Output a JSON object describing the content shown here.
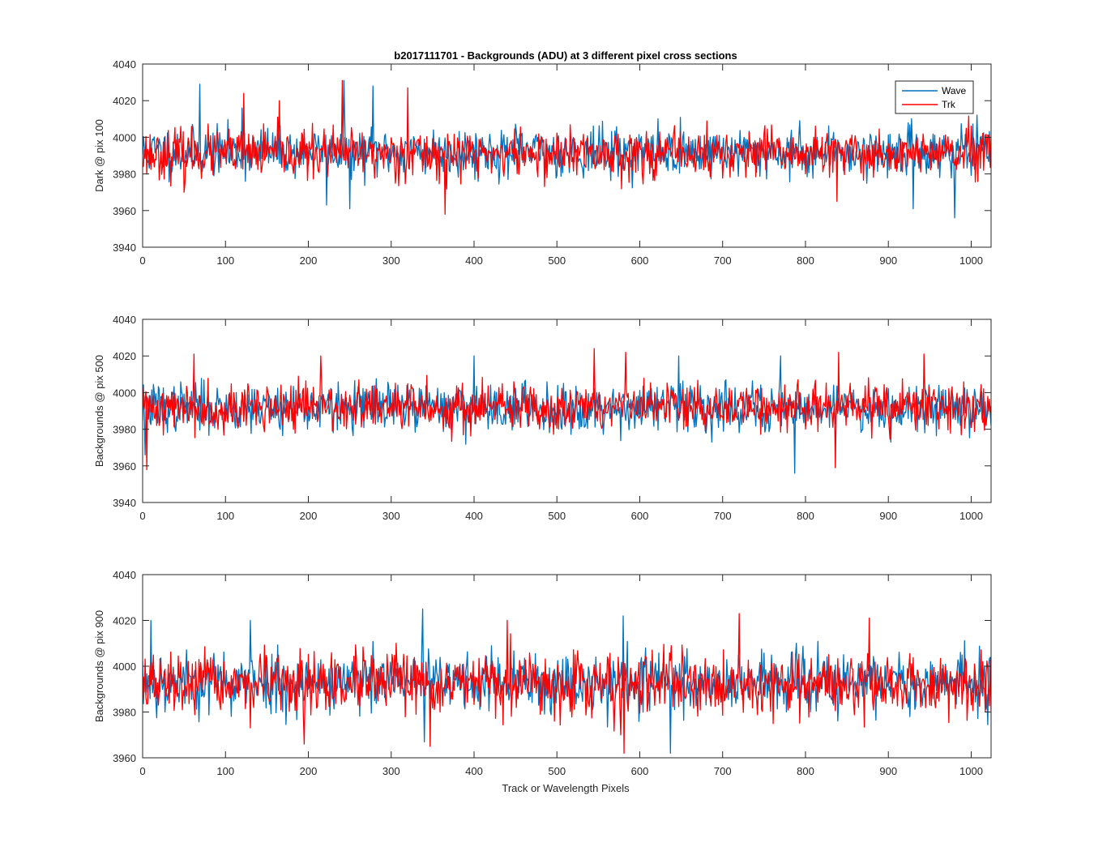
{
  "figure": {
    "title": "b2017111701 - Backgrounds (ADU) at 3 different pixel cross sections",
    "xlabel": "Track or Wavelength Pixels"
  },
  "colors": {
    "wave": "#0072BD",
    "trk": "#FF0000",
    "axis": "#262626"
  },
  "chart_data": [
    {
      "type": "line",
      "title": "b2017111701 - Backgrounds (ADU) at 3 different pixel cross sections",
      "xlabel": "",
      "ylabel": "Dark @ pix 100",
      "xlim": [
        0,
        1024
      ],
      "ylim": [
        3940,
        4040
      ],
      "xticks": [
        0,
        100,
        200,
        300,
        400,
        500,
        600,
        700,
        800,
        900,
        1000
      ],
      "yticks": [
        3940,
        3960,
        3980,
        4000,
        4020,
        4040
      ],
      "legend": {
        "placement": "top-right",
        "entries": [
          "Wave",
          "Trk"
        ]
      },
      "series": [
        {
          "name": "Wave",
          "color": "#0072BD",
          "mean": 3992,
          "sd": 6.5,
          "seed": 11,
          "spikes": [
            [
              69,
              4029
            ],
            [
              120,
              4016
            ],
            [
              243,
              4031
            ],
            [
              278,
              4028
            ],
            [
              222,
              3963
            ],
            [
              250,
              3961
            ],
            [
              980,
              3956
            ],
            [
              930,
              3961
            ]
          ]
        },
        {
          "name": "Trk",
          "color": "#FF0000",
          "mean": 3991,
          "sd": 6.5,
          "seed": 23,
          "spikes": [
            [
              122,
              4024
            ],
            [
              241,
              4031
            ],
            [
              320,
              4027
            ],
            [
              365,
              3958
            ],
            [
              165,
              4020
            ],
            [
              838,
              3965
            ],
            [
              50,
              3970
            ]
          ]
        }
      ]
    },
    {
      "type": "line",
      "title": "",
      "xlabel": "",
      "ylabel": "Backgrounds @ pix 500",
      "xlim": [
        0,
        1024
      ],
      "ylim": [
        3940,
        4040
      ],
      "xticks": [
        0,
        100,
        200,
        300,
        400,
        500,
        600,
        700,
        800,
        900,
        1000
      ],
      "yticks": [
        3940,
        3960,
        3980,
        4000,
        4020,
        4040
      ],
      "series": [
        {
          "name": "Wave",
          "color": "#0072BD",
          "mean": 3992,
          "sd": 6.5,
          "seed": 37,
          "spikes": [
            [
              400,
              4020
            ],
            [
              647,
              4020
            ],
            [
              770,
              4020
            ],
            [
              787,
              3956
            ],
            [
              3,
              3966
            ]
          ]
        },
        {
          "name": "Trk",
          "color": "#FF0000",
          "mean": 3992,
          "sd": 6.5,
          "seed": 41,
          "spikes": [
            [
              5,
              3958
            ],
            [
              62,
              4021
            ],
            [
              215,
              4020
            ],
            [
              545,
              4024
            ],
            [
              583,
              4022
            ],
            [
              840,
              4022
            ],
            [
              836,
              3959
            ],
            [
              943,
              4021
            ]
          ]
        }
      ]
    },
    {
      "type": "line",
      "title": "",
      "xlabel": "Track or Wavelength Pixels",
      "ylabel": "Backgrounds @ pix 900",
      "xlim": [
        0,
        1024
      ],
      "ylim": [
        3960,
        4040
      ],
      "xticks": [
        0,
        100,
        200,
        300,
        400,
        500,
        600,
        700,
        800,
        900,
        1000
      ],
      "yticks": [
        3960,
        3980,
        4000,
        4020,
        4040
      ],
      "series": [
        {
          "name": "Wave",
          "color": "#0072BD",
          "mean": 3993,
          "sd": 6.5,
          "seed": 53,
          "spikes": [
            [
              338,
              4025
            ],
            [
              580,
              4022
            ],
            [
              10,
              4020
            ],
            [
              130,
              4020
            ],
            [
              637,
              3962
            ],
            [
              340,
              3967
            ]
          ]
        },
        {
          "name": "Trk",
          "color": "#FF0000",
          "mean": 3992,
          "sd": 6.5,
          "seed": 67,
          "spikes": [
            [
              720,
              4023
            ],
            [
              581,
              3962
            ],
            [
              195,
              3966
            ],
            [
              347,
              3965
            ],
            [
              440,
              4020
            ],
            [
              877,
              4021
            ]
          ]
        }
      ]
    }
  ]
}
